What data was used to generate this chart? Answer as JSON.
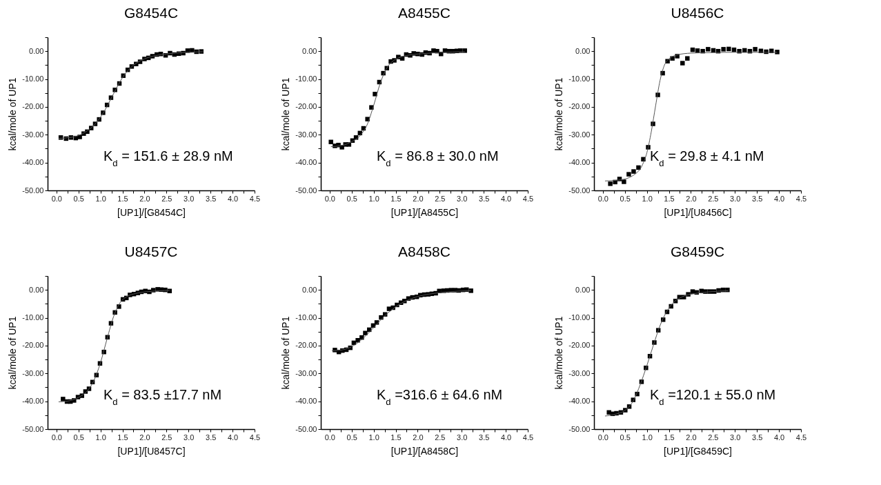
{
  "chart_data": [
    {
      "type": "scatter",
      "title": "G8454C",
      "xlabel": "[UP1]/[G8454C]",
      "ylabel": "kcal/mole of UP1",
      "annotations": [
        "K$_{d}$ = 151.6 ± 28.9 nM"
      ],
      "xlim": [
        -0.2,
        4.5
      ],
      "ylim": [
        -50,
        5
      ],
      "xticks": [
        {
          "value": 0,
          "label": "0.0"
        },
        {
          "value": 0.25,
          "label": null
        },
        {
          "value": 0.5,
          "label": "0.5"
        },
        {
          "value": 0.75,
          "label": null
        },
        {
          "value": 1,
          "label": "1.0"
        },
        {
          "value": 1.25,
          "label": null
        },
        {
          "value": 1.5,
          "label": "1.5"
        },
        {
          "value": 1.75,
          "label": null
        },
        {
          "value": 2,
          "label": "2.0"
        },
        {
          "value": 2.25,
          "label": null
        },
        {
          "value": 2.5,
          "label": "2.5"
        },
        {
          "value": 2.75,
          "label": null
        },
        {
          "value": 3,
          "label": "3.0"
        },
        {
          "value": 3.25,
          "label": null
        },
        {
          "value": 3.5,
          "label": "3.5"
        },
        {
          "value": 3.75,
          "label": null
        },
        {
          "value": 4,
          "label": "4.0"
        },
        {
          "value": 4.25,
          "label": null
        },
        {
          "value": 4.5,
          "label": "4.5"
        }
      ],
      "yticks": [
        {
          "value": -50,
          "label": "-50.00"
        },
        {
          "value": -45,
          "label": null
        },
        {
          "value": -40,
          "label": "-40.00"
        },
        {
          "value": -35,
          "label": null
        },
        {
          "value": -30,
          "label": "-30.00"
        },
        {
          "value": -25,
          "label": null
        },
        {
          "value": -20,
          "label": "-20.00"
        },
        {
          "value": -15,
          "label": null
        },
        {
          "value": -10,
          "label": "-10.00"
        },
        {
          "value": -5,
          "label": null
        },
        {
          "value": 0,
          "label": "0.00"
        },
        {
          "value": 5,
          "label": null
        }
      ],
      "series": [
        {
          "type": "scatter",
          "marker": "square",
          "color": "#000000",
          "x": [
            0.1,
            0.22,
            0.33,
            0.44,
            0.53,
            0.62,
            0.7,
            0.79,
            0.88,
            0.97,
            1.06,
            1.15,
            1.24,
            1.33,
            1.43,
            1.52,
            1.62,
            1.71,
            1.81,
            1.9,
            2.0,
            2.09,
            2.18,
            2.28,
            2.37,
            2.48,
            2.58,
            2.68,
            2.78,
            2.88,
            2.98,
            3.08,
            3.18,
            3.29
          ],
          "values": [
            -31.0,
            -31.4,
            -31.0,
            -31.2,
            -30.8,
            -29.6,
            -28.9,
            -27.6,
            -26.1,
            -24.5,
            -22.1,
            -19.3,
            -16.7,
            -13.9,
            -11.6,
            -8.8,
            -6.7,
            -5.5,
            -4.6,
            -3.8,
            -2.8,
            -2.4,
            -1.8,
            -1.2,
            -1.0,
            -1.5,
            -0.7,
            -1.2,
            -0.9,
            -0.7,
            0.2,
            0.3,
            -0.2,
            -0.1
          ]
        },
        {
          "type": "line",
          "marker": "none",
          "color": "#555555",
          "x": [
            0.05,
            0.3,
            0.5,
            0.7,
            0.9,
            1.1,
            1.3,
            1.5,
            1.7,
            1.9,
            2.1,
            2.4,
            2.7,
            3.0,
            3.33
          ],
          "values": [
            -31.3,
            -31.0,
            -30.3,
            -28.6,
            -25.8,
            -21.2,
            -15.2,
            -9.5,
            -5.7,
            -3.5,
            -2.2,
            -1.2,
            -0.7,
            -0.4,
            -0.2
          ]
        }
      ]
    },
    {
      "type": "scatter",
      "title": "A8455C",
      "xlabel": "[UP1]/[A8455C]",
      "ylabel": "kcal/mole of UP1",
      "annotations": [
        "K$_{d}$ = 86.8 ± 30.0 nM"
      ],
      "xlim": [
        -0.2,
        4.5
      ],
      "ylim": [
        -50,
        5
      ],
      "xticks": [
        {
          "value": 0,
          "label": "0.0"
        },
        {
          "value": 0.25,
          "label": null
        },
        {
          "value": 0.5,
          "label": "0.5"
        },
        {
          "value": 0.75,
          "label": null
        },
        {
          "value": 1,
          "label": "1.0"
        },
        {
          "value": 1.25,
          "label": null
        },
        {
          "value": 1.5,
          "label": "1.5"
        },
        {
          "value": 1.75,
          "label": null
        },
        {
          "value": 2,
          "label": "2.0"
        },
        {
          "value": 2.25,
          "label": null
        },
        {
          "value": 2.5,
          "label": "2.5"
        },
        {
          "value": 2.75,
          "label": null
        },
        {
          "value": 3,
          "label": "3.0"
        },
        {
          "value": 3.25,
          "label": null
        },
        {
          "value": 3.5,
          "label": "3.5"
        },
        {
          "value": 3.75,
          "label": null
        },
        {
          "value": 4,
          "label": "4.0"
        },
        {
          "value": 4.25,
          "label": null
        },
        {
          "value": 4.5,
          "label": "4.5"
        }
      ],
      "yticks": [
        {
          "value": -50,
          "label": "-50.00"
        },
        {
          "value": -45,
          "label": null
        },
        {
          "value": -40,
          "label": "-40.00"
        },
        {
          "value": -35,
          "label": null
        },
        {
          "value": -30,
          "label": "-30.00"
        },
        {
          "value": -25,
          "label": null
        },
        {
          "value": -20,
          "label": "-20.00"
        },
        {
          "value": -15,
          "label": null
        },
        {
          "value": -10,
          "label": "-10.00"
        },
        {
          "value": -5,
          "label": null
        },
        {
          "value": 0,
          "label": "0.00"
        },
        {
          "value": 5,
          "label": null
        }
      ],
      "series": [
        {
          "type": "scatter",
          "marker": "square",
          "color": "#000000",
          "x": [
            0.03,
            0.12,
            0.2,
            0.28,
            0.36,
            0.44,
            0.52,
            0.6,
            0.69,
            0.77,
            0.86,
            0.95,
            1.03,
            1.13,
            1.22,
            1.3,
            1.39,
            1.47,
            1.56,
            1.65,
            1.74,
            1.83,
            1.91,
            2.0,
            2.1,
            2.18,
            2.27,
            2.36,
            2.44,
            2.53,
            2.62,
            2.71,
            2.8,
            2.89,
            2.97,
            3.07
          ],
          "values": [
            -32.6,
            -34.0,
            -33.7,
            -34.5,
            -33.5,
            -33.5,
            -32.1,
            -31.0,
            -29.4,
            -27.7,
            -24.4,
            -20.2,
            -15.4,
            -11.1,
            -7.9,
            -6.1,
            -3.7,
            -3.3,
            -2.1,
            -2.6,
            -1.2,
            -1.5,
            -0.8,
            -1.0,
            -1.2,
            -0.5,
            -0.7,
            0.2,
            0.0,
            -1.0,
            0.2,
            0.0,
            0.0,
            0.1,
            0.2,
            0.2
          ]
        },
        {
          "type": "line",
          "marker": "none",
          "color": "#555555",
          "x": [
            0.03,
            0.3,
            0.5,
            0.7,
            0.85,
            1.0,
            1.15,
            1.3,
            1.45,
            1.6,
            1.8,
            2.1,
            2.5,
            3.07
          ],
          "values": [
            -34.3,
            -33.8,
            -32.5,
            -30.2,
            -26.5,
            -19.5,
            -11.5,
            -6.0,
            -3.4,
            -2.2,
            -1.4,
            -0.9,
            -0.5,
            -0.2
          ]
        }
      ]
    },
    {
      "type": "scatter",
      "title": "U8456C",
      "xlabel": "[UP1]/[U8456C]",
      "ylabel": "kcal/mole of UP1",
      "annotations": [
        "K$_{d}$ = 29.8 ± 4.1 nM"
      ],
      "xlim": [
        -0.2,
        4.5
      ],
      "ylim": [
        -50,
        5
      ],
      "xticks": [
        {
          "value": 0,
          "label": "0.0"
        },
        {
          "value": 0.25,
          "label": null
        },
        {
          "value": 0.5,
          "label": "0.5"
        },
        {
          "value": 0.75,
          "label": null
        },
        {
          "value": 1,
          "label": "1.0"
        },
        {
          "value": 1.25,
          "label": null
        },
        {
          "value": 1.5,
          "label": "1.5"
        },
        {
          "value": 1.75,
          "label": null
        },
        {
          "value": 2,
          "label": "2.0"
        },
        {
          "value": 2.25,
          "label": null
        },
        {
          "value": 2.5,
          "label": "2.5"
        },
        {
          "value": 2.75,
          "label": null
        },
        {
          "value": 3,
          "label": "3.0"
        },
        {
          "value": 3.25,
          "label": null
        },
        {
          "value": 3.5,
          "label": "3.5"
        },
        {
          "value": 3.75,
          "label": null
        },
        {
          "value": 4,
          "label": "4.0"
        },
        {
          "value": 4.25,
          "label": null
        },
        {
          "value": 4.5,
          "label": "4.5"
        }
      ],
      "yticks": [
        {
          "value": -50,
          "label": "-50.00"
        },
        {
          "value": -45,
          "label": null
        },
        {
          "value": -40,
          "label": "-40.00"
        },
        {
          "value": -35,
          "label": null
        },
        {
          "value": -30,
          "label": "-30.00"
        },
        {
          "value": -25,
          "label": null
        },
        {
          "value": -20,
          "label": "-20.00"
        },
        {
          "value": -15,
          "label": null
        },
        {
          "value": -10,
          "label": "-10.00"
        },
        {
          "value": -5,
          "label": null
        },
        {
          "value": 0,
          "label": "0.00"
        },
        {
          "value": 5,
          "label": null
        }
      ],
      "series": [
        {
          "type": "scatter",
          "marker": "square",
          "color": "#000000",
          "x": [
            0.17,
            0.28,
            0.38,
            0.48,
            0.59,
            0.7,
            0.81,
            0.92,
            1.03,
            1.14,
            1.25,
            1.36,
            1.47,
            1.58,
            1.69,
            1.81,
            1.92,
            2.04,
            2.15,
            2.27,
            2.39,
            2.51,
            2.62,
            2.74,
            2.86,
            2.98,
            3.1,
            3.22,
            3.34,
            3.46,
            3.59,
            3.71,
            3.83,
            3.96
          ],
          "values": [
            -47.6,
            -47.0,
            -45.9,
            -46.9,
            -44.2,
            -43.2,
            -41.8,
            -38.8,
            -34.5,
            -26.1,
            -15.7,
            -7.9,
            -3.6,
            -2.6,
            -1.8,
            -4.3,
            -2.6,
            0.5,
            0.2,
            0.0,
            0.7,
            0.3,
            0.0,
            0.7,
            0.8,
            0.5,
            0.0,
            0.3,
            0.0,
            0.7,
            0.1,
            -0.2,
            0.1,
            -0.3
          ]
        },
        {
          "type": "line",
          "marker": "none",
          "color": "#555555",
          "x": [
            0.05,
            0.4,
            0.7,
            0.9,
            1.0,
            1.1,
            1.2,
            1.3,
            1.4,
            1.5,
            1.7,
            2.0,
            2.5,
            3.0,
            3.96
          ],
          "values": [
            -46.6,
            -46.2,
            -44.5,
            -40.8,
            -36.5,
            -29.0,
            -19.5,
            -10.5,
            -5.0,
            -2.8,
            -1.3,
            -0.7,
            -0.5,
            -0.4,
            -0.4
          ]
        }
      ]
    },
    {
      "type": "scatter",
      "title": "U8457C",
      "xlabel": "[UP1]/[U8457C]",
      "ylabel": "kcal/mole of UP1",
      "annotations": [
        "K$_{d}$ = 83.5 ±17.7 nM"
      ],
      "xlim": [
        -0.2,
        4.5
      ],
      "ylim": [
        -50,
        5
      ],
      "xticks": [
        {
          "value": 0,
          "label": "0.0"
        },
        {
          "value": 0.25,
          "label": null
        },
        {
          "value": 0.5,
          "label": "0.5"
        },
        {
          "value": 0.75,
          "label": null
        },
        {
          "value": 1,
          "label": "1.0"
        },
        {
          "value": 1.25,
          "label": null
        },
        {
          "value": 1.5,
          "label": "1.5"
        },
        {
          "value": 1.75,
          "label": null
        },
        {
          "value": 2,
          "label": "2.0"
        },
        {
          "value": 2.25,
          "label": null
        },
        {
          "value": 2.5,
          "label": "2.5"
        },
        {
          "value": 2.75,
          "label": null
        },
        {
          "value": 3,
          "label": "3.0"
        },
        {
          "value": 3.25,
          "label": null
        },
        {
          "value": 3.5,
          "label": "3.5"
        },
        {
          "value": 3.75,
          "label": null
        },
        {
          "value": 4,
          "label": "4.0"
        },
        {
          "value": 4.25,
          "label": null
        },
        {
          "value": 4.5,
          "label": "4.5"
        }
      ],
      "yticks": [
        {
          "value": -50,
          "label": "-50.00"
        },
        {
          "value": -45,
          "label": null
        },
        {
          "value": -40,
          "label": "-40.00"
        },
        {
          "value": -35,
          "label": null
        },
        {
          "value": -30,
          "label": "-30.00"
        },
        {
          "value": -25,
          "label": null
        },
        {
          "value": -20,
          "label": "-20.00"
        },
        {
          "value": -15,
          "label": null
        },
        {
          "value": -10,
          "label": "-10.00"
        },
        {
          "value": -5,
          "label": null
        },
        {
          "value": 0,
          "label": "0.00"
        },
        {
          "value": 5,
          "label": null
        }
      ],
      "series": [
        {
          "type": "scatter",
          "marker": "square",
          "color": "#000000",
          "x": [
            0.15,
            0.24,
            0.32,
            0.4,
            0.49,
            0.58,
            0.66,
            0.74,
            0.82,
            0.91,
            0.99,
            1.08,
            1.16,
            1.24,
            1.33,
            1.42,
            1.51,
            1.59,
            1.67,
            1.76,
            1.85,
            1.93,
            2.02,
            2.11,
            2.2,
            2.3,
            2.38,
            2.47,
            2.57
          ],
          "values": [
            -39.2,
            -40.1,
            -40.1,
            -39.7,
            -38.5,
            -38.0,
            -36.5,
            -35.5,
            -33.1,
            -30.6,
            -26.4,
            -22.3,
            -17.0,
            -12.0,
            -8.1,
            -6.0,
            -3.4,
            -2.9,
            -1.8,
            -1.5,
            -1.1,
            -0.7,
            -0.4,
            -0.7,
            -0.1,
            0.2,
            0.1,
            0.0,
            -0.4
          ]
        },
        {
          "type": "line",
          "marker": "none",
          "color": "#555555",
          "x": [
            0.05,
            0.3,
            0.5,
            0.7,
            0.85,
            1.0,
            1.15,
            1.3,
            1.45,
            1.6,
            1.8,
            2.1,
            2.57
          ],
          "values": [
            -40.2,
            -39.8,
            -38.6,
            -36.3,
            -32.6,
            -26.2,
            -17.6,
            -9.5,
            -4.5,
            -2.4,
            -1.3,
            -0.6,
            -0.2
          ]
        }
      ]
    },
    {
      "type": "scatter",
      "title": "A8458C",
      "xlabel": "[UP1]/[A8458C]",
      "ylabel": "kcal/mole of UP1",
      "annotations": [
        "K$_{d}$ =316.6 ± 64.6 nM"
      ],
      "xlim": [
        -0.2,
        4.5
      ],
      "ylim": [
        -50,
        5
      ],
      "xticks": [
        {
          "value": 0,
          "label": "0.0"
        },
        {
          "value": 0.25,
          "label": null
        },
        {
          "value": 0.5,
          "label": "0.5"
        },
        {
          "value": 0.75,
          "label": null
        },
        {
          "value": 1,
          "label": "1.0"
        },
        {
          "value": 1.25,
          "label": null
        },
        {
          "value": 1.5,
          "label": "1.5"
        },
        {
          "value": 1.75,
          "label": null
        },
        {
          "value": 2,
          "label": "2.0"
        },
        {
          "value": 2.25,
          "label": null
        },
        {
          "value": 2.5,
          "label": "2.5"
        },
        {
          "value": 2.75,
          "label": null
        },
        {
          "value": 3,
          "label": "3.0"
        },
        {
          "value": 3.25,
          "label": null
        },
        {
          "value": 3.5,
          "label": "3.5"
        },
        {
          "value": 3.75,
          "label": null
        },
        {
          "value": 4,
          "label": "4.0"
        },
        {
          "value": 4.25,
          "label": null
        },
        {
          "value": 4.5,
          "label": "4.5"
        }
      ],
      "yticks": [
        {
          "value": -50,
          "label": "-50.00"
        },
        {
          "value": -45,
          "label": null
        },
        {
          "value": -40,
          "label": "-40.00"
        },
        {
          "value": -35,
          "label": null
        },
        {
          "value": -30,
          "label": "-30.00"
        },
        {
          "value": -25,
          "label": null
        },
        {
          "value": -20,
          "label": "-20.00"
        },
        {
          "value": -15,
          "label": null
        },
        {
          "value": -10,
          "label": "-10.00"
        },
        {
          "value": -5,
          "label": null
        },
        {
          "value": 0,
          "label": "0.00"
        },
        {
          "value": 5,
          "label": null
        }
      ],
      "series": [
        {
          "type": "scatter",
          "marker": "square",
          "color": "#000000",
          "x": [
            0.12,
            0.21,
            0.29,
            0.38,
            0.47,
            0.55,
            0.64,
            0.73,
            0.81,
            0.9,
            0.99,
            1.07,
            1.17,
            1.26,
            1.35,
            1.44,
            1.53,
            1.62,
            1.7,
            1.79,
            1.88,
            1.98,
            2.06,
            2.15,
            2.24,
            2.32,
            2.41,
            2.49,
            2.59,
            2.67,
            2.76,
            2.85,
            2.93,
            3.03,
            3.11,
            3.21
          ],
          "values": [
            -21.6,
            -22.3,
            -21.8,
            -21.5,
            -20.8,
            -19.0,
            -18.1,
            -17.1,
            -15.5,
            -14.3,
            -12.8,
            -11.7,
            -9.9,
            -8.8,
            -6.8,
            -6.4,
            -5.4,
            -4.6,
            -4.0,
            -3.1,
            -2.7,
            -2.5,
            -1.9,
            -1.7,
            -1.6,
            -1.4,
            -1.2,
            -0.4,
            -0.3,
            -0.2,
            -0.1,
            -0.1,
            -0.2,
            0.0,
            0.1,
            -0.3
          ]
        },
        {
          "type": "line",
          "marker": "none",
          "color": "#555555",
          "x": [
            0.05,
            0.3,
            0.5,
            0.7,
            0.9,
            1.1,
            1.3,
            1.5,
            1.7,
            1.9,
            2.1,
            2.4,
            2.7,
            3.0,
            3.21
          ],
          "values": [
            -21.9,
            -21.5,
            -20.4,
            -18.2,
            -15.2,
            -11.8,
            -8.6,
            -6.1,
            -4.2,
            -2.9,
            -2.0,
            -1.2,
            -0.7,
            -0.4,
            -0.3
          ]
        }
      ]
    },
    {
      "type": "scatter",
      "title": "G8459C",
      "xlabel": "[UP1]/[G8459C]",
      "ylabel": "kcal/mole of UP1",
      "annotations": [
        "K$_{d}$ =120.1 ± 55.0 nM"
      ],
      "xlim": [
        -0.2,
        4.5
      ],
      "ylim": [
        -50,
        5
      ],
      "xticks": [
        {
          "value": 0,
          "label": "0.0"
        },
        {
          "value": 0.25,
          "label": null
        },
        {
          "value": 0.5,
          "label": "0.5"
        },
        {
          "value": 0.75,
          "label": null
        },
        {
          "value": 1,
          "label": "1.0"
        },
        {
          "value": 1.25,
          "label": null
        },
        {
          "value": 1.5,
          "label": "1.5"
        },
        {
          "value": 1.75,
          "label": null
        },
        {
          "value": 2,
          "label": "2.0"
        },
        {
          "value": 2.25,
          "label": null
        },
        {
          "value": 2.5,
          "label": "2.5"
        },
        {
          "value": 2.75,
          "label": null
        },
        {
          "value": 3,
          "label": "3.0"
        },
        {
          "value": 3.25,
          "label": null
        },
        {
          "value": 3.5,
          "label": "3.5"
        },
        {
          "value": 3.75,
          "label": null
        },
        {
          "value": 4,
          "label": "4.0"
        },
        {
          "value": 4.25,
          "label": null
        },
        {
          "value": 4.5,
          "label": "4.5"
        }
      ],
      "yticks": [
        {
          "value": -50,
          "label": "-50.00"
        },
        {
          "value": -45,
          "label": null
        },
        {
          "value": -40,
          "label": "-40.00"
        },
        {
          "value": -35,
          "label": null
        },
        {
          "value": -30,
          "label": "-30.00"
        },
        {
          "value": -25,
          "label": null
        },
        {
          "value": -20,
          "label": "-20.00"
        },
        {
          "value": -15,
          "label": null
        },
        {
          "value": -10,
          "label": "-10.00"
        },
        {
          "value": -5,
          "label": null
        },
        {
          "value": 0,
          "label": "0.00"
        },
        {
          "value": 5,
          "label": null
        }
      ],
      "series": [
        {
          "type": "scatter",
          "marker": "square",
          "color": "#000000",
          "x": [
            0.14,
            0.22,
            0.31,
            0.41,
            0.51,
            0.6,
            0.69,
            0.78,
            0.88,
            0.98,
            1.07,
            1.17,
            1.26,
            1.37,
            1.46,
            1.55,
            1.65,
            1.74,
            1.84,
            1.94,
            2.04,
            2.13,
            2.24,
            2.33,
            2.43,
            2.53,
            2.63,
            2.73,
            2.83
          ],
          "values": [
            -44.0,
            -44.5,
            -44.3,
            -44.0,
            -43.2,
            -41.9,
            -39.5,
            -37.4,
            -33.0,
            -28.0,
            -23.8,
            -18.9,
            -14.5,
            -10.7,
            -7.9,
            -5.9,
            -4.0,
            -2.6,
            -2.6,
            -1.6,
            -0.6,
            -0.9,
            -0.4,
            -0.6,
            -0.6,
            -0.6,
            -0.2,
            0.0,
            0.0
          ]
        },
        {
          "type": "line",
          "marker": "none",
          "color": "#555555",
          "x": [
            0.05,
            0.3,
            0.5,
            0.7,
            0.85,
            1.0,
            1.15,
            1.3,
            1.45,
            1.6,
            1.8,
            2.1,
            2.5,
            2.85
          ],
          "values": [
            -45.3,
            -44.6,
            -43.3,
            -39.6,
            -34.0,
            -27.2,
            -19.8,
            -12.8,
            -7.8,
            -4.6,
            -2.5,
            -1.3,
            -0.6,
            -0.3
          ]
        }
      ]
    }
  ]
}
